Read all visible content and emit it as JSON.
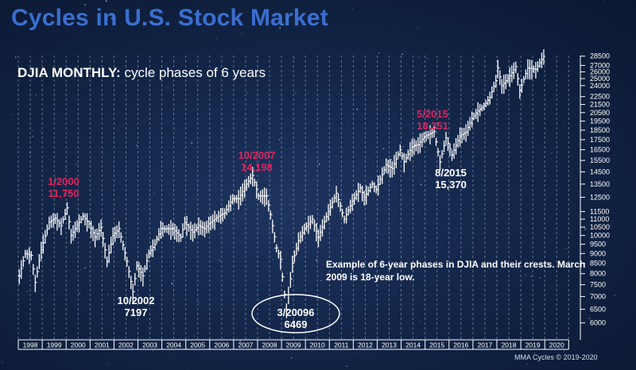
{
  "title": "Cycles in U.S. Stock Market",
  "subtitle": {
    "bold": "DJIA MONTHLY:",
    "rest": " cycle phases of 6 years"
  },
  "note": "Example of 6-year phases in DJIA and their crests. March 2009 is 18-year low.",
  "credit": "MMA Cycles © 2019-2020",
  "colors": {
    "highlight": "#e0245e",
    "text": "#ffffff",
    "title": "#3a6fd1"
  },
  "chart_data": {
    "type": "line",
    "title": "Cycles in U.S. Stock Market",
    "xlabel": "",
    "ylabel": "",
    "x_ticks": [
      "1998",
      "1999",
      "2000",
      "2001",
      "2002",
      "2003",
      "2004",
      "2005",
      "2006",
      "2007",
      "2008",
      "2009",
      "2010",
      "2011",
      "2012",
      "2013",
      "2014",
      "2015",
      "2016",
      "2017",
      "2018",
      "2019",
      "2020"
    ],
    "y_ticks": [
      6000,
      6500,
      7000,
      7500,
      8000,
      8500,
      9000,
      9500,
      10000,
      10500,
      11000,
      11500,
      12500,
      13500,
      14500,
      15500,
      16500,
      17500,
      18500,
      19500,
      20500,
      21500,
      22500,
      24000,
      25000,
      26000,
      27000,
      28500
    ],
    "ylim": [
      5800,
      29000
    ],
    "grid": "vertical dashed lines at 6-month intervals",
    "series": [
      {
        "values": [
          [
            "1998-01",
            7900
          ],
          [
            "1998-04",
            9000
          ],
          [
            "1998-07",
            8900
          ],
          [
            "1998-09",
            7600
          ],
          [
            "1998-12",
            9200
          ],
          [
            "1999-04",
            10800
          ],
          [
            "1999-07",
            11050
          ],
          [
            "1999-10",
            10600
          ],
          [
            "2000-01",
            11750
          ],
          [
            "2000-03",
            10000
          ],
          [
            "2000-06",
            10600
          ],
          [
            "2000-09",
            11200
          ],
          [
            "2000-12",
            10700
          ],
          [
            "2001-03",
            9900
          ],
          [
            "2001-06",
            10500
          ],
          [
            "2001-09",
            8600
          ],
          [
            "2001-12",
            10000
          ],
          [
            "2002-03",
            10400
          ],
          [
            "2002-07",
            8600
          ],
          [
            "2002-10",
            7197
          ],
          [
            "2002-12",
            8400
          ],
          [
            "2003-03",
            7900
          ],
          [
            "2003-06",
            9000
          ],
          [
            "2003-09",
            9500
          ],
          [
            "2003-12",
            10400
          ],
          [
            "2004-03",
            10400
          ],
          [
            "2004-06",
            10400
          ],
          [
            "2004-10",
            9900
          ],
          [
            "2004-12",
            10800
          ],
          [
            "2005-04",
            10200
          ],
          [
            "2005-07",
            10600
          ],
          [
            "2005-10",
            10400
          ],
          [
            "2005-12",
            10700
          ],
          [
            "2006-05",
            11200
          ],
          [
            "2006-08",
            11400
          ],
          [
            "2006-12",
            12400
          ],
          [
            "2007-03",
            12400
          ],
          [
            "2007-07",
            13500
          ],
          [
            "2007-10",
            14198
          ],
          [
            "2008-01",
            12600
          ],
          [
            "2008-05",
            12600
          ],
          [
            "2008-07",
            11300
          ],
          [
            "2008-10",
            9300
          ],
          [
            "2008-12",
            8700
          ],
          [
            "2009-02",
            7100
          ],
          [
            "2009-03",
            6469
          ],
          [
            "2009-06",
            8500
          ],
          [
            "2009-09",
            9700
          ],
          [
            "2009-12",
            10400
          ],
          [
            "2010-04",
            11000
          ],
          [
            "2010-07",
            9900
          ],
          [
            "2010-12",
            11500
          ],
          [
            "2011-04",
            12800
          ],
          [
            "2011-08",
            11000
          ],
          [
            "2011-12",
            12200
          ],
          [
            "2012-04",
            13200
          ],
          [
            "2012-06",
            12500
          ],
          [
            "2012-10",
            13500
          ],
          [
            "2012-12",
            13100
          ],
          [
            "2013-05",
            15100
          ],
          [
            "2013-08",
            14800
          ],
          [
            "2013-12",
            16500
          ],
          [
            "2014-02",
            15400
          ],
          [
            "2014-06",
            16800
          ],
          [
            "2014-09",
            17000
          ],
          [
            "2014-12",
            17800
          ],
          [
            "2015-05",
            18351
          ],
          [
            "2015-08",
            15370
          ],
          [
            "2015-11",
            17700
          ],
          [
            "2016-02",
            16000
          ],
          [
            "2016-06",
            17900
          ],
          [
            "2016-09",
            18300
          ],
          [
            "2016-12",
            19800
          ],
          [
            "2017-03",
            20700
          ],
          [
            "2017-06",
            21300
          ],
          [
            "2017-09",
            22400
          ],
          [
            "2017-12",
            24700
          ],
          [
            "2018-01",
            26600
          ],
          [
            "2018-03",
            24000
          ],
          [
            "2018-07",
            25400
          ],
          [
            "2018-10",
            26800
          ],
          [
            "2018-12",
            23300
          ],
          [
            "2019-04",
            26600
          ],
          [
            "2019-08",
            26400
          ],
          [
            "2019-12",
            28500
          ]
        ]
      }
    ],
    "annotations": [
      {
        "label": "1/2000",
        "value": "11,750",
        "color": "red"
      },
      {
        "label": "10/2002",
        "value": "7197",
        "color": "white"
      },
      {
        "label": "10/2007",
        "value": "14,198",
        "color": "red"
      },
      {
        "label": "3/20096",
        "value": "6469",
        "color": "white"
      },
      {
        "label": "5/2015",
        "value": "18,351",
        "color": "red"
      },
      {
        "label": "8/2015",
        "value": "15,370",
        "color": "white"
      }
    ]
  }
}
